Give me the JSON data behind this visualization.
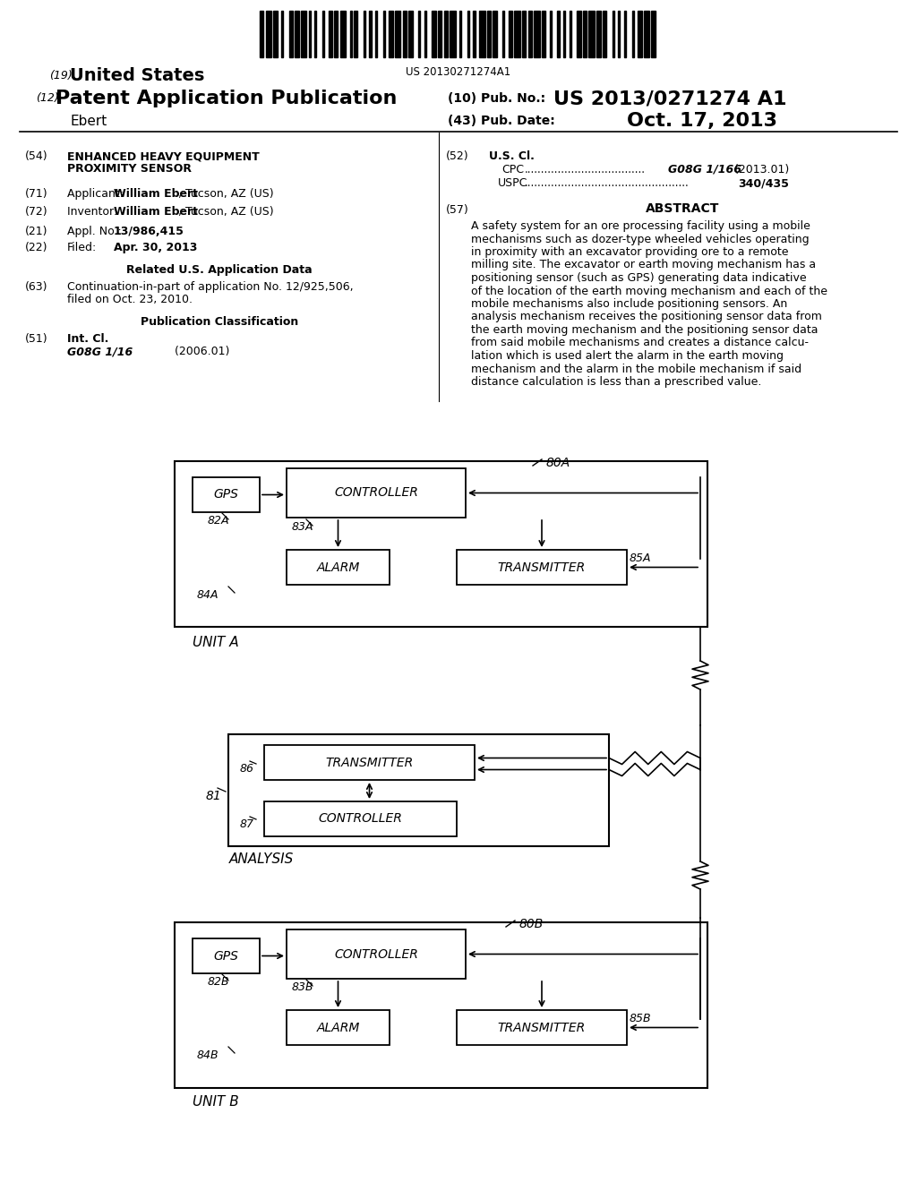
{
  "barcode_text": "US 20130271274A1",
  "bg_color": "#ffffff",
  "abstract_lines": [
    "A safety system for an ore processing facility using a mobile",
    "mechanisms such as dozer-type wheeled vehicles operating",
    "in proximity with an excavator providing ore to a remote",
    "milling site. The excavator or earth moving mechanism has a",
    "positioning sensor (such as GPS) generating data indicative",
    "of the location of the earth moving mechanism and each of the",
    "mobile mechanisms also include positioning sensors. An",
    "analysis mechanism receives the positioning sensor data from",
    "the earth moving mechanism and the positioning sensor data",
    "from said mobile mechanisms and creates a distance calcu-",
    "lation which is used alert the alarm in the earth moving",
    "mechanism and the alarm in the mobile mechanism if said",
    "distance calculation is less than a prescribed value."
  ]
}
